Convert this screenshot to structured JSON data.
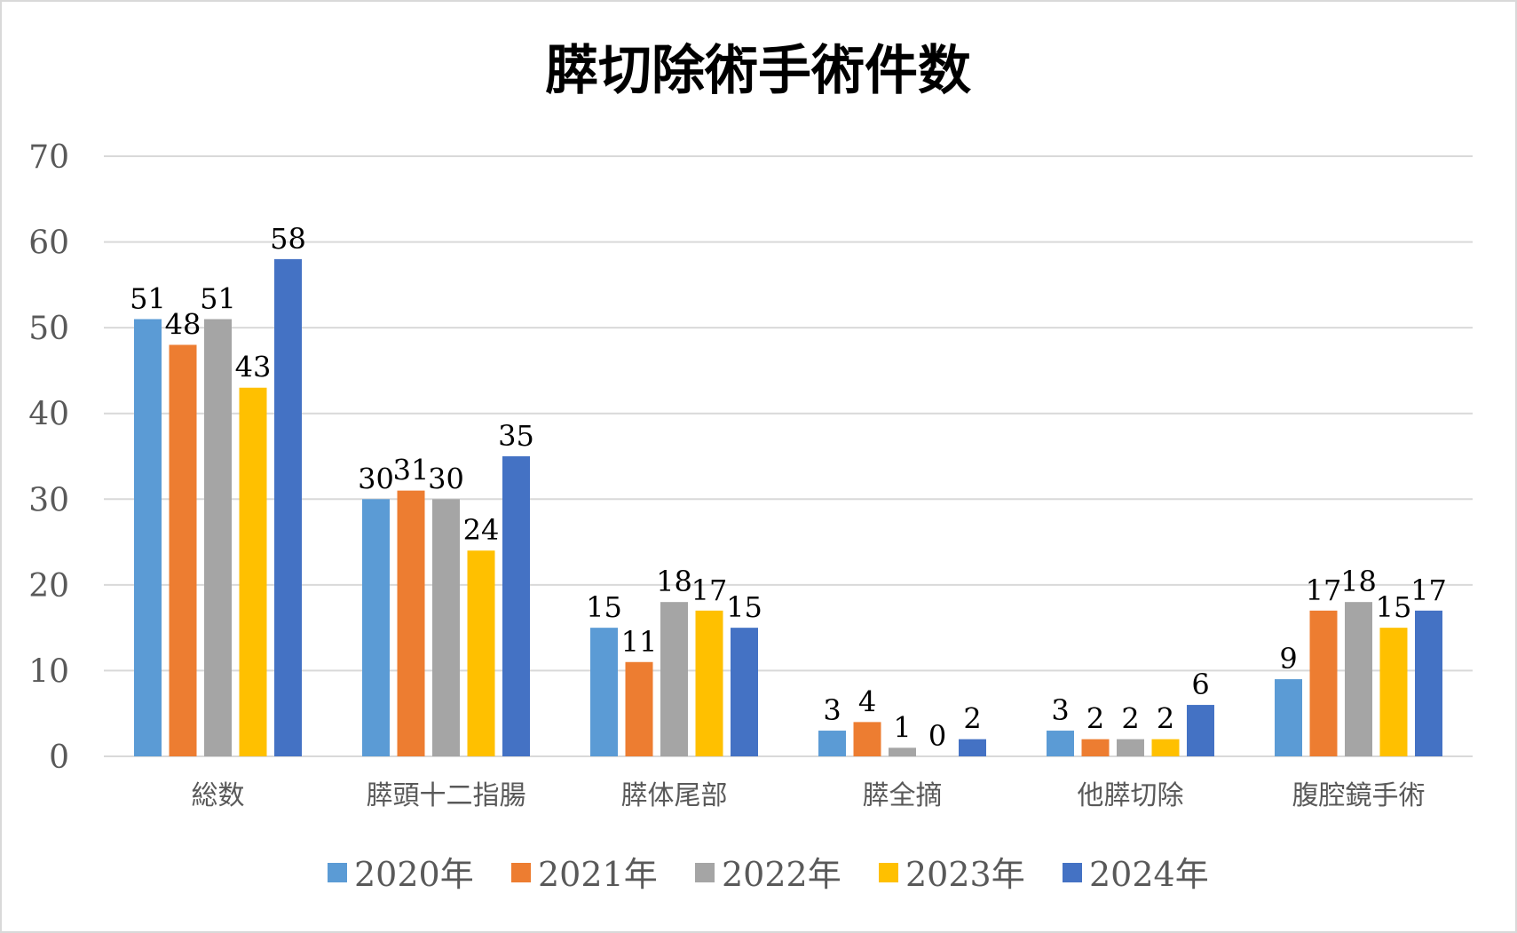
{
  "chart_data": {
    "type": "bar",
    "title": "膵切除術手術件数",
    "categories": [
      "総数",
      "膵頭十二指腸",
      "膵体尾部",
      "膵全摘",
      "他膵切除",
      "腹腔鏡手術"
    ],
    "series": [
      {
        "name": "2020年",
        "color": "#5b9bd5",
        "values": [
          51,
          30,
          15,
          3,
          3,
          9
        ]
      },
      {
        "name": "2021年",
        "color": "#ed7d31",
        "values": [
          48,
          31,
          11,
          4,
          2,
          17
        ]
      },
      {
        "name": "2022年",
        "color": "#a5a5a5",
        "values": [
          51,
          30,
          18,
          1,
          2,
          18
        ]
      },
      {
        "name": "2023年",
        "color": "#ffc000",
        "values": [
          43,
          24,
          17,
          0,
          2,
          15
        ]
      },
      {
        "name": "2024年",
        "color": "#4472c4",
        "values": [
          58,
          35,
          15,
          2,
          6,
          17
        ]
      }
    ],
    "ylim": [
      0,
      70
    ],
    "yticks": [
      0,
      10,
      20,
      30,
      40,
      50,
      60,
      70
    ],
    "grid": true,
    "data_labels": true,
    "legend_position": "bottom"
  }
}
